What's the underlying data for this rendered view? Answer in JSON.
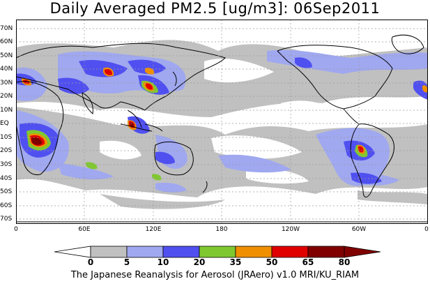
{
  "title": "Daily Averaged PM2.5 [ug/m3]: 06Sep2011",
  "footer": "The Japanese Reanalysis for Aerosol (JRAero) v1.0 MRI/KU_RIAM",
  "latitude_labels": [
    "70N",
    "60N",
    "50N",
    "40N",
    "30N",
    "20N",
    "10N",
    "EQ",
    "10S",
    "20S",
    "30S",
    "40S",
    "50S",
    "60S",
    "70S"
  ],
  "longitude_labels": [
    "0",
    "60E",
    "120E",
    "180",
    "120W",
    "60W",
    "0"
  ],
  "colorbar": {
    "labels": [
      "0",
      "5",
      "10",
      "20",
      "35",
      "50",
      "65",
      "80"
    ],
    "colors": [
      "#ffffff",
      "#c0c0c0",
      "#a0a8f0",
      "#5050f0",
      "#80c830",
      "#f09000",
      "#e00000",
      "#800000"
    ]
  }
}
